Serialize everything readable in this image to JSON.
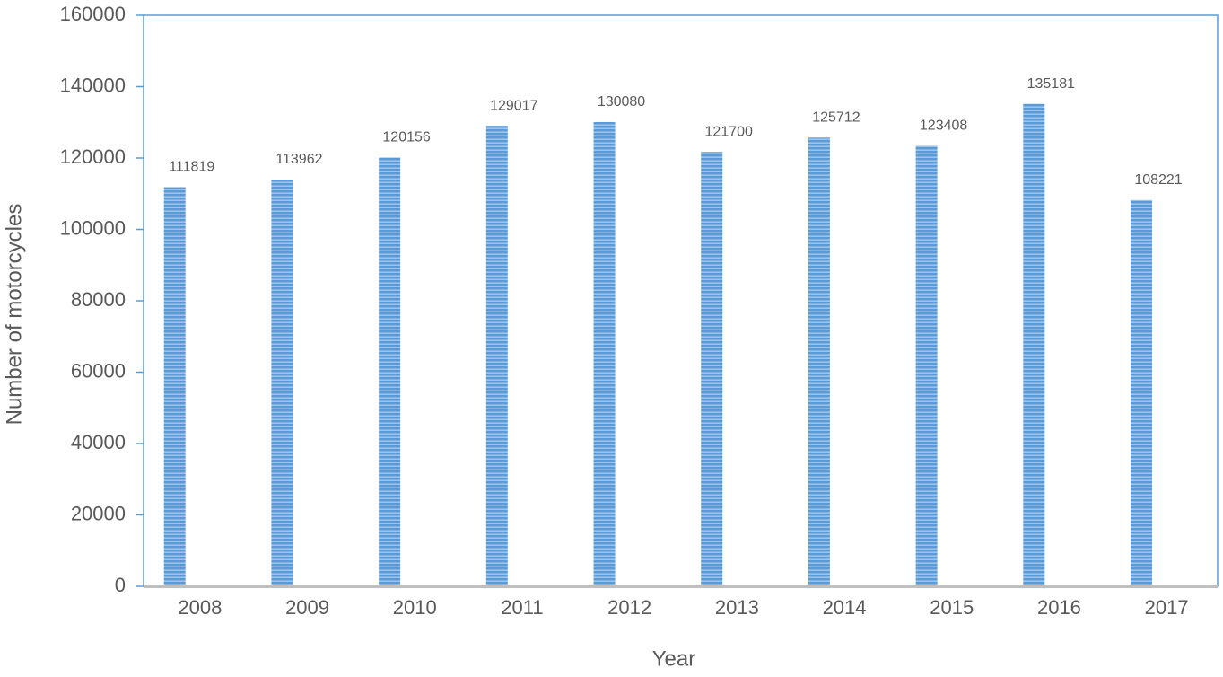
{
  "chart_data": {
    "type": "bar",
    "x_label": "Year",
    "y_label": "Number of motorcycles",
    "categories": [
      "2008",
      "2009",
      "2010",
      "2011",
      "2012",
      "2013",
      "2014",
      "2015",
      "2016",
      "2017"
    ],
    "values": [
      111819,
      113962,
      120156,
      129017,
      130080,
      121700,
      125712,
      123408,
      135181,
      108221
    ],
    "color": "#5b9bd5",
    "ylim": [
      0,
      160000
    ],
    "yticks": [
      0,
      20000,
      40000,
      60000,
      80000,
      100000,
      120000,
      140000,
      160000
    ],
    "grid": false
  }
}
